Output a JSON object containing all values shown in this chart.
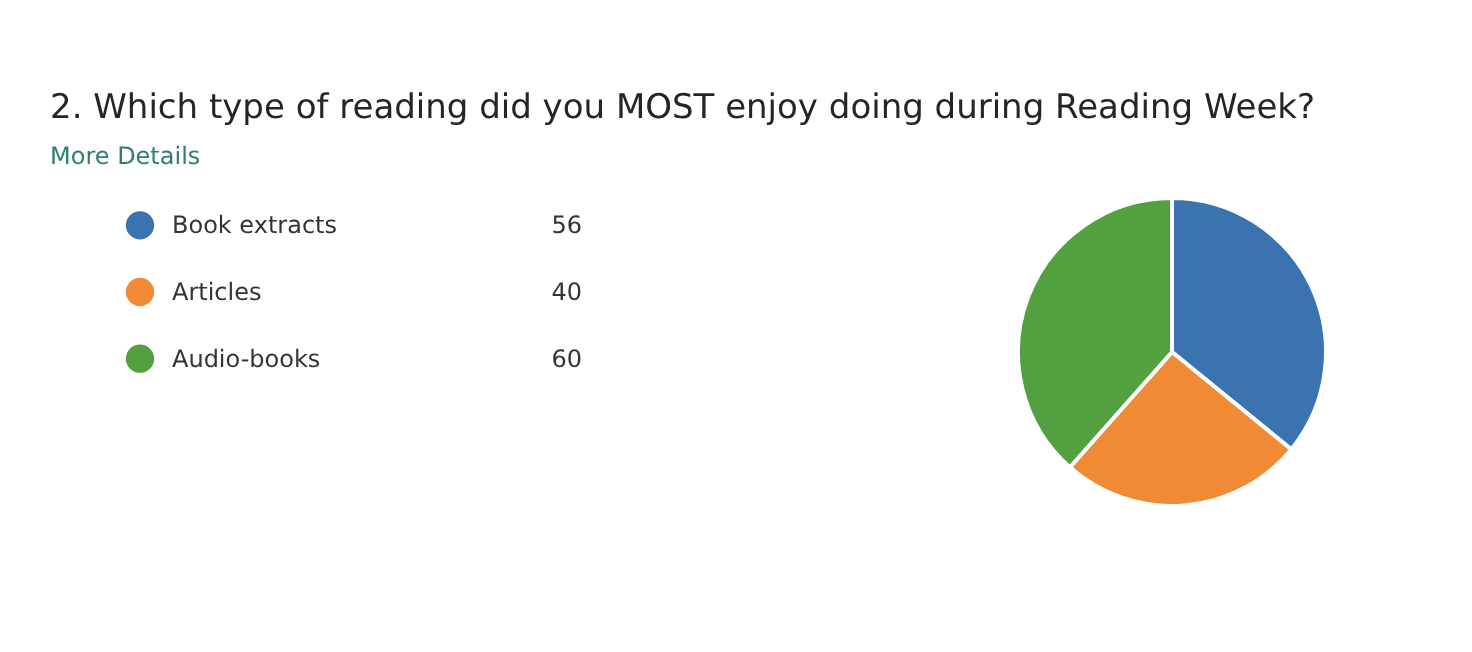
{
  "chart_data": {
    "type": "pie",
    "title": "2.  Which type of reading did you MOST enjoy doing during Reading Week?",
    "subtitle": "More Details",
    "categories": [
      "Book extracts",
      "Articles",
      "Audio-books"
    ],
    "values": [
      56,
      40,
      60
    ],
    "colors": [
      "#3a73b0",
      "#f08a35",
      "#52a03f"
    ],
    "legend": "left",
    "data_labels": true
  }
}
